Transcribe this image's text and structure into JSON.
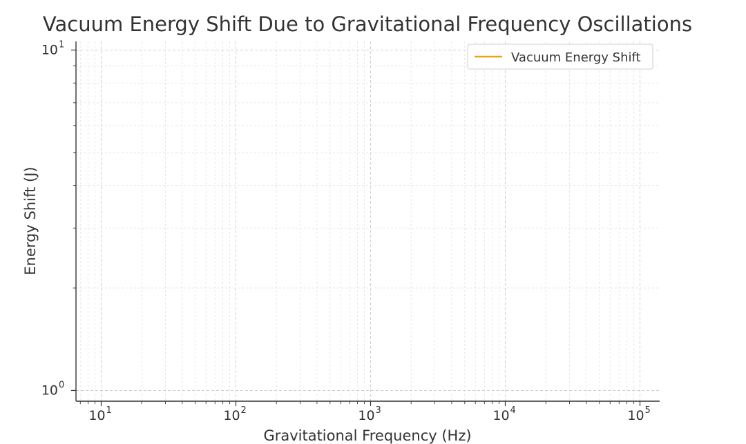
{
  "chart_data": {
    "type": "line",
    "title": "Vacuum Energy Shift Due to Gravitational Frequency Oscillations",
    "xlabel": "Gravitational Frequency (Hz)",
    "ylabel": "Energy Shift (J)",
    "x_scale": "log",
    "y_scale": "log",
    "xlim": [
      6.5,
      140000
    ],
    "ylim": [
      0.93,
      10.6
    ],
    "x_tick_labels": [
      {
        "base": "10",
        "exp": "1",
        "value": 10
      },
      {
        "base": "10",
        "exp": "2",
        "value": 100
      },
      {
        "base": "10",
        "exp": "3",
        "value": 1000
      },
      {
        "base": "10",
        "exp": "4",
        "value": 10000
      },
      {
        "base": "10",
        "exp": "5",
        "value": 100000
      }
    ],
    "y_tick_labels": [
      {
        "base": "10",
        "exp": "0",
        "value": 1
      },
      {
        "base": "10",
        "exp": "1",
        "value": 10
      }
    ],
    "grid": true,
    "legend_position": "top-right",
    "series": [
      {
        "name": "Vacuum Energy Shift",
        "color": "#e8a317",
        "x": [],
        "y": []
      }
    ]
  }
}
